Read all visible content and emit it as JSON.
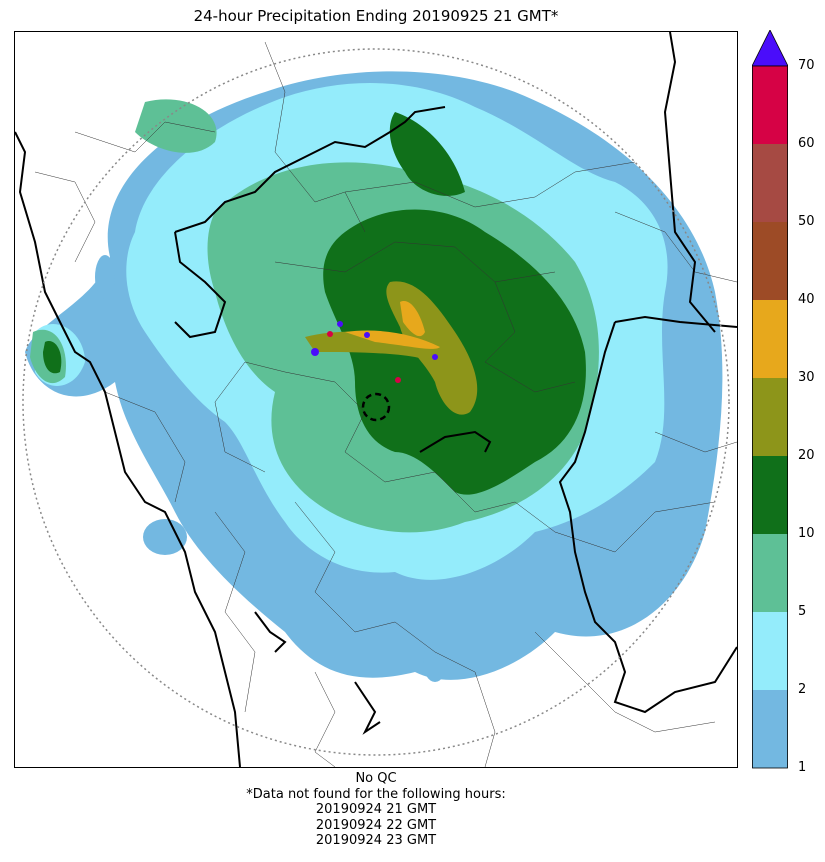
{
  "title": "24-hour Precipitation Ending 20190925 21 GMT*",
  "legend": {
    "bounds": [
      "1",
      "2",
      "5",
      "10",
      "20",
      "30",
      "40",
      "50",
      "60",
      "70"
    ],
    "colors": [
      "#73b8e1",
      "#94ecfb",
      "#5ec096",
      "#10701a",
      "#8d951a",
      "#e7a81c",
      "#9d4b26",
      "#a64a43",
      "#d60245"
    ],
    "extend_color": "#4a0dfb"
  },
  "footer": {
    "qc": "No QC",
    "note": "*Data not found for the following hours:",
    "hours": [
      "20190924 21 GMT",
      "20190924 22 GMT",
      "20190924 23 GMT"
    ]
  }
}
